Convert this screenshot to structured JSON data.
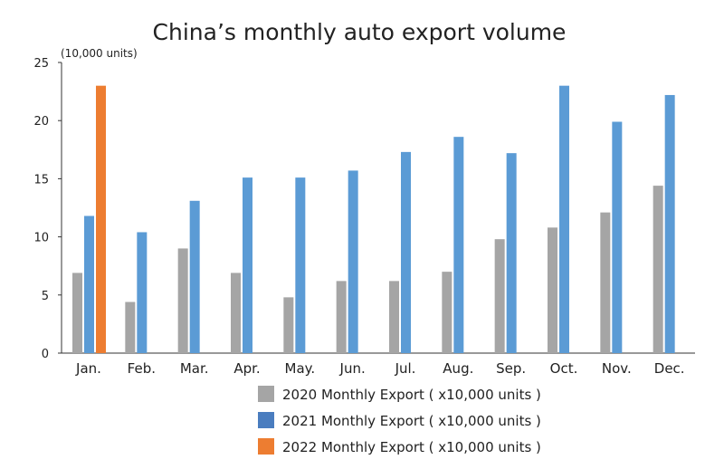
{
  "chart_data": {
    "type": "bar",
    "title": "China’s monthly auto export volume",
    "ylabel": "(10,000 units)",
    "xlabel": "",
    "ylim": [
      0,
      25
    ],
    "yticks": [
      0,
      5,
      10,
      15,
      20,
      25
    ],
    "grid": false,
    "legend_position": "bottom",
    "categories": [
      "Jan.",
      "Feb.",
      "Mar.",
      "Apr.",
      "May.",
      "Jun.",
      "Jul.",
      "Aug.",
      "Sep.",
      "Oct.",
      "Nov.",
      "Dec."
    ],
    "series": [
      {
        "name": "2020 Monthly Export ( x10,000 units )",
        "color": "#a5a5a5",
        "legend_color": "#a5a5a5",
        "values": [
          6.9,
          4.4,
          9.0,
          6.9,
          4.8,
          6.2,
          6.2,
          7.0,
          9.8,
          10.8,
          12.1,
          14.4
        ]
      },
      {
        "name": "2021 Monthly Export ( x10,000 units )",
        "color": "#5b9bd5",
        "legend_color": "#4a7dbf",
        "values": [
          11.8,
          10.4,
          13.1,
          15.1,
          15.1,
          15.7,
          17.3,
          18.6,
          17.2,
          23.0,
          19.9,
          22.2
        ]
      },
      {
        "name": "2022 Monthly Export ( x10,000 units )",
        "color": "#ed7d31",
        "legend_color": "#ed7d31",
        "values": [
          23.0,
          null,
          null,
          null,
          null,
          null,
          null,
          null,
          null,
          null,
          null,
          null
        ]
      }
    ]
  }
}
